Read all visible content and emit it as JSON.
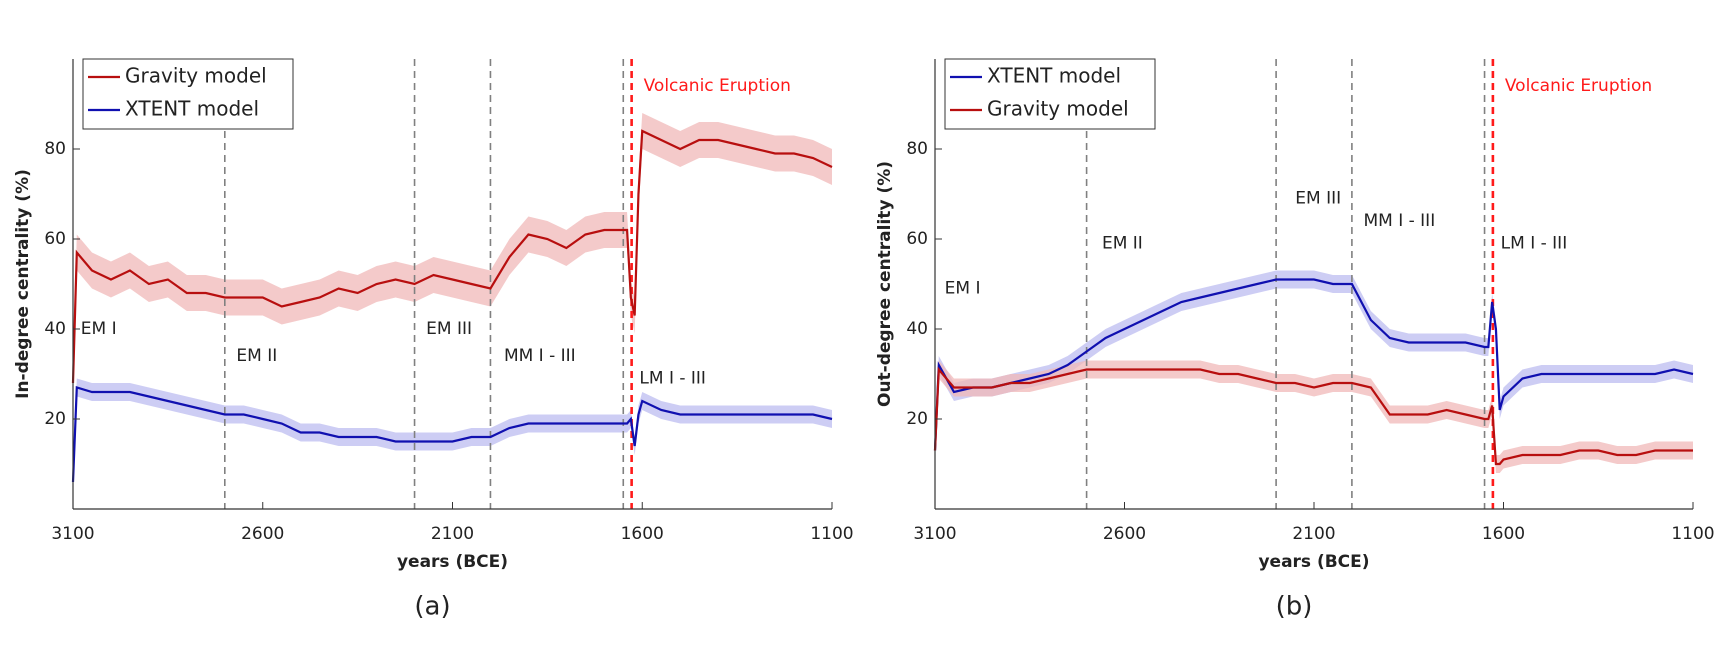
{
  "chart_data": [
    {
      "type": "line",
      "caption": "(a)",
      "xlabel": "years (BCE)",
      "ylabel": "In-degree centrality (%)",
      "x": [
        3100,
        3090,
        3050,
        3000,
        2950,
        2900,
        2850,
        2800,
        2750,
        2700,
        2650,
        2600,
        2550,
        2500,
        2450,
        2400,
        2350,
        2300,
        2250,
        2200,
        2150,
        2100,
        2050,
        2000,
        1950,
        1900,
        1850,
        1800,
        1750,
        1700,
        1650,
        1640,
        1630,
        1620,
        1610,
        1600,
        1550,
        1500,
        1450,
        1400,
        1350,
        1300,
        1250,
        1200,
        1150,
        1100
      ],
      "xlim": [
        3100,
        1100
      ],
      "xticks": [
        3100,
        2600,
        2100,
        1600,
        1100
      ],
      "ylim": [
        0,
        100
      ],
      "yticks": [
        20,
        40,
        60,
        80
      ],
      "legend": "upper left",
      "series": [
        {
          "name": "Gravity model",
          "color": "#b80f0f",
          "band_color": "#f0b8b8",
          "values": [
            28,
            57,
            53,
            51,
            53,
            50,
            51,
            48,
            48,
            47,
            47,
            47,
            45,
            46,
            47,
            49,
            48,
            50,
            51,
            50,
            52,
            51,
            50,
            49,
            56,
            61,
            60,
            58,
            61,
            62,
            62,
            62,
            47,
            43,
            70,
            84,
            82,
            80,
            82,
            82,
            81,
            80,
            79,
            79,
            78,
            76
          ],
          "lower": [
            24,
            53,
            49,
            47,
            49,
            46,
            47,
            44,
            44,
            43,
            43,
            43,
            41,
            42,
            43,
            45,
            44,
            46,
            47,
            46,
            48,
            47,
            46,
            45,
            52,
            57,
            56,
            54,
            57,
            58,
            58,
            58,
            43,
            39,
            66,
            80,
            78,
            76,
            78,
            78,
            77,
            76,
            75,
            75,
            74,
            72
          ],
          "upper": [
            32,
            61,
            57,
            55,
            57,
            54,
            55,
            52,
            52,
            51,
            51,
            51,
            49,
            50,
            51,
            53,
            52,
            54,
            55,
            54,
            56,
            55,
            54,
            53,
            60,
            65,
            64,
            62,
            65,
            66,
            66,
            66,
            51,
            47,
            74,
            88,
            86,
            84,
            86,
            86,
            85,
            84,
            83,
            83,
            82,
            80
          ]
        },
        {
          "name": "XTENT model",
          "color": "#1010b0",
          "band_color": "#bcbcf0",
          "values": [
            6,
            27,
            26,
            26,
            26,
            25,
            24,
            23,
            22,
            21,
            21,
            20,
            19,
            17,
            17,
            16,
            16,
            16,
            15,
            15,
            15,
            15,
            16,
            16,
            18,
            19,
            19,
            19,
            19,
            19,
            19,
            19,
            20,
            14,
            21,
            24,
            22,
            21,
            21,
            21,
            21,
            21,
            21,
            21,
            21,
            20
          ],
          "lower": [
            4,
            25,
            24,
            24,
            24,
            23,
            22,
            21,
            20,
            19,
            19,
            18,
            17,
            15,
            15,
            14,
            14,
            14,
            13,
            13,
            13,
            13,
            14,
            14,
            16,
            17,
            17,
            17,
            17,
            17,
            17,
            17,
            18,
            12,
            19,
            22,
            20,
            19,
            19,
            19,
            19,
            19,
            19,
            19,
            19,
            18
          ],
          "upper": [
            8,
            29,
            28,
            28,
            28,
            27,
            26,
            25,
            24,
            23,
            23,
            22,
            21,
            19,
            19,
            18,
            18,
            18,
            17,
            17,
            17,
            17,
            18,
            18,
            20,
            21,
            21,
            21,
            21,
            21,
            21,
            21,
            22,
            16,
            23,
            26,
            24,
            23,
            23,
            23,
            23,
            23,
            23,
            23,
            23,
            22
          ]
        }
      ],
      "period_lines": [
        2700,
        2200,
        2000,
        1650
      ],
      "period_line_color": "#808080",
      "eruption": {
        "x": 1628,
        "label": "Volcanic Eruption",
        "color": "#ff1a1a"
      },
      "periods": [
        "EM I",
        "EM II",
        "EM III",
        "MM I - III",
        "LM I - III"
      ]
    },
    {
      "type": "line",
      "caption": "(b)",
      "xlabel": "years (BCE)",
      "ylabel": "Out-degree centrality (%)",
      "x": [
        3100,
        3090,
        3050,
        3000,
        2950,
        2900,
        2850,
        2800,
        2750,
        2700,
        2650,
        2600,
        2550,
        2500,
        2450,
        2400,
        2350,
        2300,
        2250,
        2200,
        2150,
        2100,
        2050,
        2000,
        1950,
        1900,
        1850,
        1800,
        1750,
        1700,
        1650,
        1640,
        1630,
        1620,
        1610,
        1600,
        1550,
        1500,
        1450,
        1400,
        1350,
        1300,
        1250,
        1200,
        1150,
        1100
      ],
      "xlim": [
        3100,
        1100
      ],
      "xticks": [
        3100,
        2600,
        2100,
        1600,
        1100
      ],
      "ylim": [
        0,
        100
      ],
      "yticks": [
        20,
        40,
        60,
        80
      ],
      "legend": "upper left",
      "series": [
        {
          "name": "XTENT model",
          "color": "#1010b0",
          "band_color": "#bcbcf0",
          "values": [
            13,
            32,
            26,
            27,
            27,
            28,
            29,
            30,
            32,
            35,
            38,
            40,
            42,
            44,
            46,
            47,
            48,
            49,
            50,
            51,
            51,
            51,
            50,
            50,
            42,
            38,
            37,
            37,
            37,
            37,
            36,
            36,
            46,
            40,
            22,
            25,
            29,
            30,
            30,
            30,
            30,
            30,
            30,
            30,
            31,
            30
          ],
          "lower": [
            11,
            30,
            24,
            25,
            25,
            26,
            27,
            28,
            30,
            33,
            36,
            38,
            40,
            42,
            44,
            45,
            46,
            47,
            48,
            49,
            49,
            49,
            48,
            48,
            40,
            36,
            35,
            35,
            35,
            35,
            34,
            34,
            44,
            38,
            20,
            23,
            27,
            28,
            28,
            28,
            28,
            28,
            28,
            28,
            29,
            28
          ],
          "upper": [
            15,
            34,
            28,
            29,
            29,
            30,
            31,
            32,
            34,
            37,
            40,
            42,
            44,
            46,
            48,
            49,
            50,
            51,
            52,
            53,
            53,
            53,
            52,
            52,
            44,
            40,
            39,
            39,
            39,
            39,
            38,
            38,
            48,
            42,
            24,
            27,
            31,
            32,
            32,
            32,
            32,
            32,
            32,
            32,
            33,
            32
          ]
        },
        {
          "name": "Gravity model",
          "color": "#b80f0f",
          "band_color": "#f0b8b8",
          "values": [
            13,
            31,
            27,
            27,
            27,
            28,
            28,
            29,
            30,
            31,
            31,
            31,
            31,
            31,
            31,
            31,
            30,
            30,
            29,
            28,
            28,
            27,
            28,
            28,
            27,
            21,
            21,
            21,
            22,
            21,
            20,
            20,
            23,
            10,
            10,
            11,
            12,
            12,
            12,
            13,
            13,
            12,
            12,
            13,
            13,
            13
          ],
          "lower": [
            11,
            29,
            25,
            25,
            25,
            26,
            26,
            27,
            28,
            29,
            29,
            29,
            29,
            29,
            29,
            29,
            28,
            28,
            27,
            26,
            26,
            25,
            26,
            26,
            25,
            19,
            19,
            19,
            20,
            19,
            18,
            18,
            21,
            8,
            8,
            9,
            10,
            10,
            10,
            11,
            11,
            10,
            10,
            11,
            11,
            11
          ],
          "upper": [
            15,
            33,
            29,
            29,
            29,
            30,
            30,
            31,
            32,
            33,
            33,
            33,
            33,
            33,
            33,
            33,
            32,
            32,
            31,
            30,
            30,
            29,
            30,
            30,
            29,
            23,
            23,
            23,
            24,
            23,
            22,
            22,
            25,
            12,
            12,
            13,
            14,
            14,
            14,
            15,
            15,
            14,
            14,
            15,
            15,
            15
          ]
        }
      ],
      "period_lines": [
        2700,
        2200,
        2000,
        1650
      ],
      "period_line_color": "#808080",
      "eruption": {
        "x": 1628,
        "label": "Volcanic Eruption",
        "color": "#ff1a1a"
      },
      "periods": [
        "EM I",
        "EM II",
        "EM III",
        "MM I - III",
        "LM I - III"
      ]
    }
  ]
}
